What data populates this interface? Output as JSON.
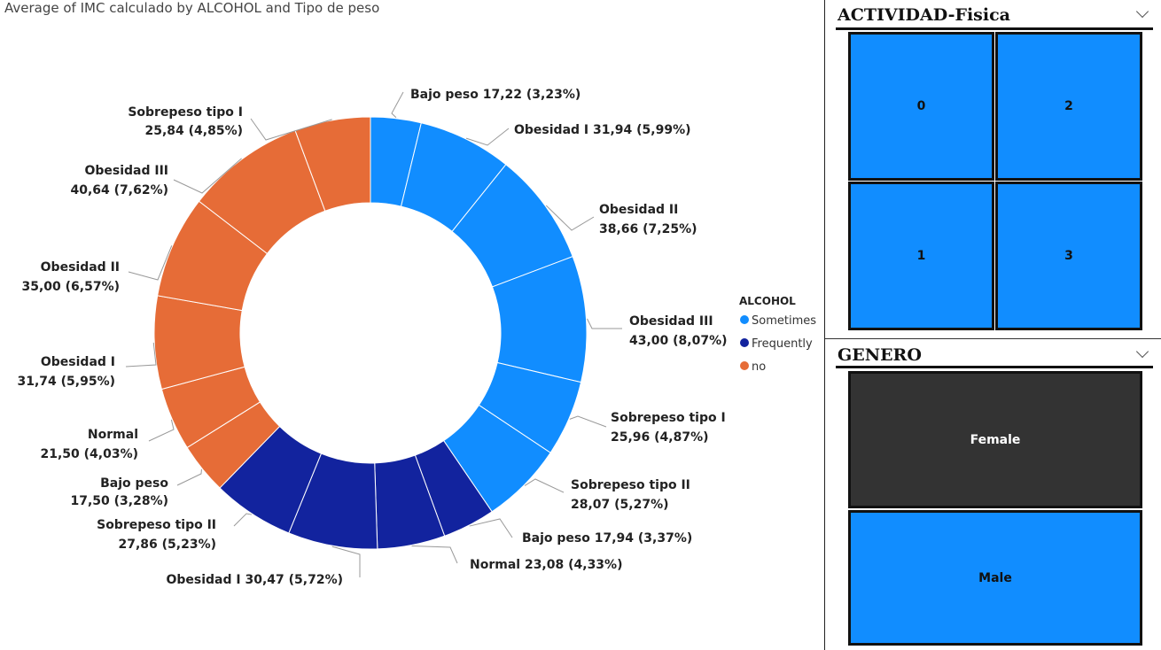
{
  "chart_data": {
    "type": "pie",
    "variant": "donut",
    "title": "Average of IMC calculado by ALCOHOL and Tipo de peso",
    "legend": {
      "title": "ALCOHOL",
      "position": "right",
      "entries": [
        "Sometimes",
        "Frequently",
        "no"
      ]
    },
    "colors": {
      "Sometimes": "#118DFF",
      "Frequently": "#12239E",
      "no": "#E66C37"
    },
    "slices": [
      {
        "group": "Sometimes",
        "category": "Bajo peso",
        "value": 17.22,
        "label": "Bajo peso 17,22 (3,23%)"
      },
      {
        "group": "Sometimes",
        "category": "Obesidad I",
        "value": 31.94,
        "label": "Obesidad I 31,94 (5,99%)"
      },
      {
        "group": "Sometimes",
        "category": "Obesidad II",
        "value": 38.66,
        "label": "Obesidad II\n38,66 (7,25%)"
      },
      {
        "group": "Sometimes",
        "category": "Obesidad III",
        "value": 43.0,
        "label": "Obesidad III\n43,00 (8,07%)"
      },
      {
        "group": "Sometimes",
        "category": "Sobrepeso tipo I",
        "value": 25.96,
        "label": "Sobrepeso tipo I\n25,96 (4,87%)"
      },
      {
        "group": "Sometimes",
        "category": "Sobrepeso tipo II",
        "value": 28.07,
        "label": "Sobrepeso tipo II\n28,07 (5,27%)"
      },
      {
        "group": "Frequently",
        "category": "Bajo peso",
        "value": 17.94,
        "label": "Bajo peso 17,94 (3,37%)"
      },
      {
        "group": "Frequently",
        "category": "Normal",
        "value": 23.08,
        "label": "Normal 23,08 (4,33%)"
      },
      {
        "group": "Frequently",
        "category": "Obesidad I",
        "value": 30.47,
        "label": "Obesidad I 30,47 (5,72%)"
      },
      {
        "group": "Frequently",
        "category": "Sobrepeso tipo II",
        "value": 27.86,
        "label": "Sobrepeso tipo II\n27,86 (5,23%)"
      },
      {
        "group": "no",
        "category": "Bajo peso",
        "value": 17.5,
        "label": "Bajo peso\n17,50 (3,28%)"
      },
      {
        "group": "no",
        "category": "Normal",
        "value": 21.5,
        "label": "Normal\n21,50 (4,03%)"
      },
      {
        "group": "no",
        "category": "Obesidad I",
        "value": 31.74,
        "label": "Obesidad I\n31,74 (5,95%)"
      },
      {
        "group": "no",
        "category": "Obesidad II",
        "value": 35.0,
        "label": "Obesidad II\n35,00 (6,57%)"
      },
      {
        "group": "no",
        "category": "Obesidad III",
        "value": 40.64,
        "label": "Obesidad III\n40,64 (7,62%)"
      },
      {
        "group": "no",
        "category": "Sobrepeso tipo I",
        "value": 25.84,
        "label": "Sobrepeso tipo I\n25,84 (4,85%)"
      }
    ]
  },
  "slicers": {
    "actividad": {
      "title": "ACTIVIDAD-Fisica",
      "options": [
        "0",
        "2",
        "1",
        "3"
      ]
    },
    "genero": {
      "title": "GENERO",
      "options": [
        "Female",
        "Male"
      ]
    }
  },
  "colors": {
    "tile_blue": "#118DFF",
    "tile_dark": "#333333",
    "tile_text_dark": "#111111",
    "tile_text_light": "#FFFFFF"
  }
}
